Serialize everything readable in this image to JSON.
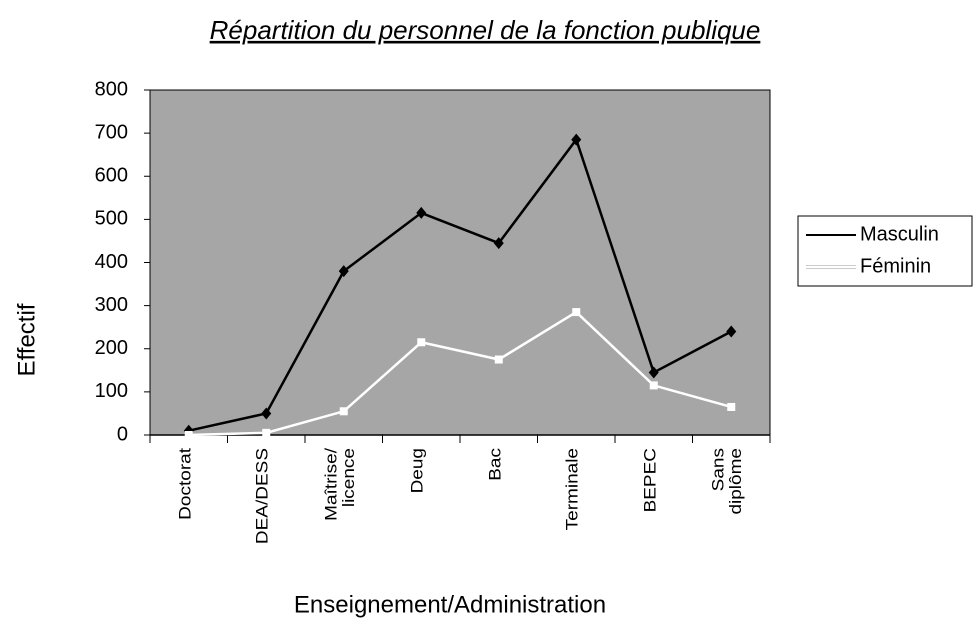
{
  "chart_data": {
    "type": "line",
    "title": "Répartition du personnel de la fonction publique",
    "x_label": "Enseignement/Administration",
    "y_label": "Effectif",
    "categories": [
      "Doctorat",
      "DEA/DESS",
      "Maîtrise/ licence",
      "Deug",
      "Bac",
      "Terminale",
      "BEPEC",
      "Sans diplôme"
    ],
    "series": [
      {
        "name": "Masculin",
        "color": "#000000",
        "values": [
          10,
          50,
          380,
          515,
          445,
          685,
          145,
          240
        ]
      },
      {
        "name": "Féminin",
        "color": "#ffffff",
        "values": [
          0,
          5,
          55,
          215,
          175,
          285,
          115,
          65
        ]
      }
    ],
    "ylim": [
      0,
      800
    ],
    "yticks": [
      0,
      100,
      200,
      300,
      400,
      500,
      600,
      700,
      800
    ],
    "plot_background": "#a6a6a6",
    "legend": "right"
  }
}
